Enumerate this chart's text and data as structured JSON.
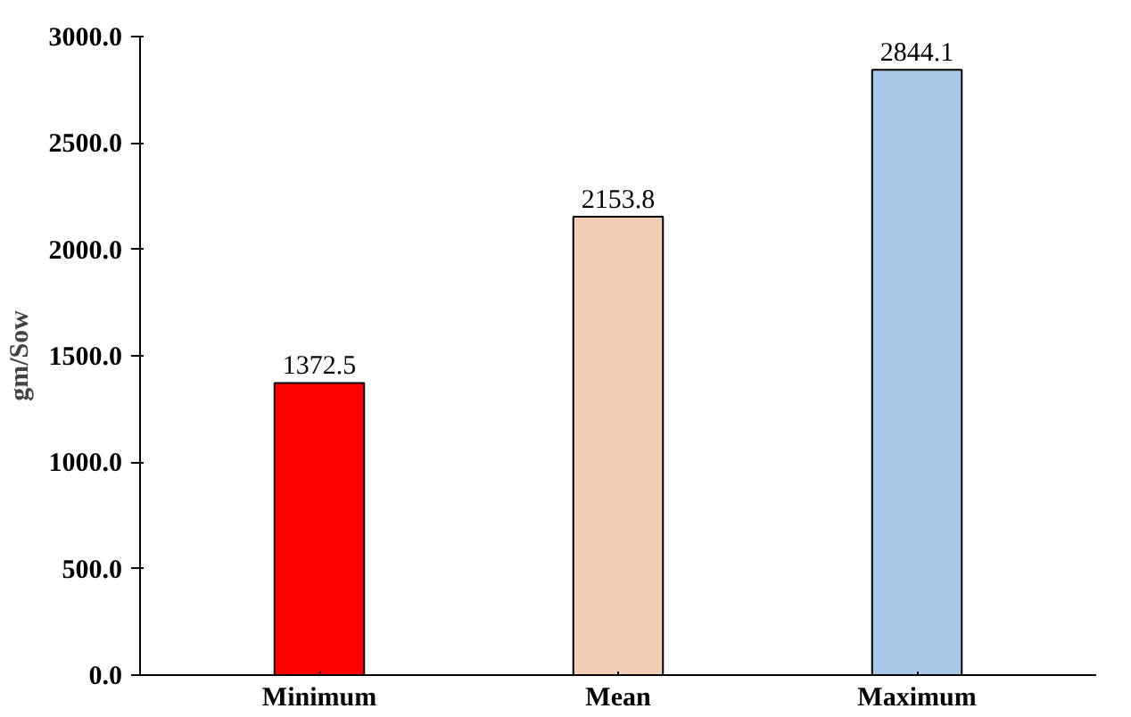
{
  "chart_data": {
    "type": "bar",
    "ylabel": "gm/Sow",
    "categories": [
      "Minimum",
      "Mean",
      "Maximum"
    ],
    "values": [
      1372.5,
      2153.8,
      2844.1
    ],
    "colors": [
      "#ff0000",
      "#f0cdb4",
      "#a9c8e8"
    ],
    "ylim": [
      0,
      3000
    ],
    "yticks": [
      {
        "value": 0,
        "label": "0.0"
      },
      {
        "value": 500,
        "label": "500.0"
      },
      {
        "value": 1000,
        "label": "1000.0"
      },
      {
        "value": 1500,
        "label": "1500.0"
      },
      {
        "value": 2000,
        "label": "2000.0"
      },
      {
        "value": 2500,
        "label": "2500.0"
      },
      {
        "value": 3000,
        "label": "3000.0"
      }
    ],
    "data_labels": true,
    "grid": false
  }
}
